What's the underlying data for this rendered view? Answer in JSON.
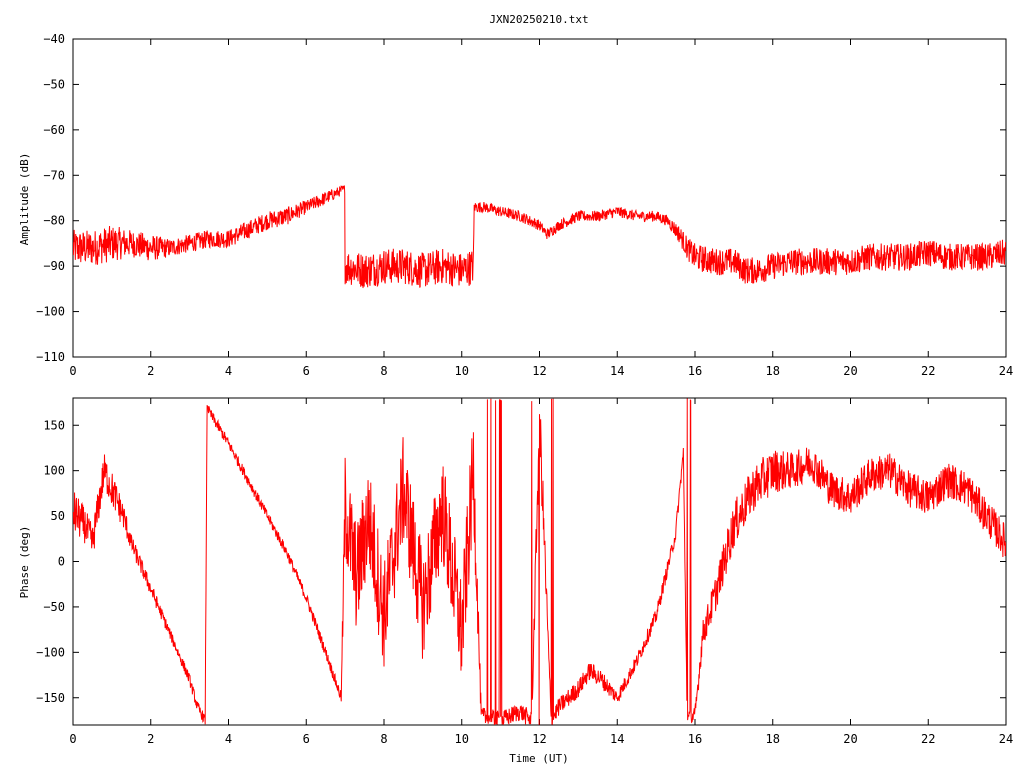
{
  "chart_data": [
    {
      "type": "line",
      "title": "JXN20250210.txt",
      "xlabel": "",
      "ylabel": "Amplitude (dB)",
      "xlim": [
        0,
        24
      ],
      "ylim": [
        -110,
        -40
      ],
      "x_ticks": [
        "0",
        "2",
        "4",
        "6",
        "8",
        "10",
        "12",
        "14",
        "16",
        "18",
        "20",
        "22",
        "24"
      ],
      "y_ticks": [
        "−40",
        "−50",
        "−60",
        "−70",
        "−80",
        "−90",
        "−100",
        "−110"
      ],
      "grid": false,
      "color": "#ff0000",
      "series": [
        {
          "x": [
            0,
            0.5,
            1,
            1.5,
            2,
            2.5,
            3,
            3.5,
            4,
            4.5,
            5,
            5.5,
            6,
            6.5,
            6.99,
            7.0,
            7.5,
            8,
            8.5,
            9,
            9.5,
            10,
            10.3,
            10.32,
            10.6,
            11,
            11.5,
            12,
            12.2,
            12.5,
            13,
            13.5,
            14,
            14.5,
            15,
            15.3,
            15.6,
            15.8,
            16,
            16.5,
            17,
            17.3,
            17.6,
            18,
            18.5,
            19,
            19.5,
            20,
            20.5,
            21,
            21.5,
            22,
            22.5,
            23,
            23.5,
            24
          ],
          "y": [
            -86,
            -86,
            -85,
            -85,
            -86,
            -86,
            -85,
            -84,
            -84,
            -82,
            -80,
            -79,
            -77,
            -75,
            -73,
            -90,
            -91,
            -90,
            -90,
            -91,
            -90,
            -91,
            -90,
            -77,
            -77,
            -78,
            -79,
            -81,
            -83,
            -81,
            -79,
            -79,
            -78,
            -79,
            -79,
            -80,
            -83,
            -86,
            -88,
            -89,
            -89,
            -91,
            -91,
            -90,
            -89,
            -89,
            -89,
            -89,
            -88,
            -88,
            -88,
            -87,
            -88,
            -88,
            -88,
            -87
          ],
          "noise": [
            4,
            4,
            4,
            3,
            3,
            2,
            2,
            2,
            2,
            2,
            2,
            2,
            1.5,
            1.5,
            1,
            4,
            4,
            4,
            4,
            4,
            4,
            4,
            4,
            1.2,
            1.2,
            1.2,
            1.2,
            1.2,
            1.2,
            1.2,
            1.2,
            1.2,
            1.2,
            1.2,
            1.2,
            1.2,
            2,
            2.5,
            3,
            3,
            3,
            3,
            3,
            3,
            3,
            3,
            3,
            3,
            3,
            3,
            3,
            3,
            3,
            3,
            3,
            3
          ]
        }
      ]
    },
    {
      "type": "line",
      "title": "",
      "xlabel": "Time (UT)",
      "ylabel": "Phase (deg)",
      "xlim": [
        0,
        24
      ],
      "ylim": [
        -180,
        180
      ],
      "x_ticks": [
        "0",
        "2",
        "4",
        "6",
        "8",
        "10",
        "12",
        "14",
        "16",
        "18",
        "20",
        "22",
        "24"
      ],
      "y_ticks": [
        "150",
        "100",
        "50",
        "0",
        "−50",
        "−100",
        "−150"
      ],
      "y_tick_values": [
        150,
        100,
        50,
        0,
        -50,
        -100,
        -150
      ],
      "grid": false,
      "color": "#ff0000",
      "series": [
        {
          "x": [
            0,
            0.3,
            0.5,
            0.8,
            1,
            1.3,
            1.5,
            2,
            2.5,
            3,
            3.2,
            3.4,
            3.45,
            3.5,
            4,
            4.5,
            5,
            5.5,
            6,
            6.5,
            6.9,
            7.0,
            7.3,
            7.6,
            8,
            8.5,
            9,
            9.5,
            10,
            10.3,
            10.5,
            11,
            11.5,
            11.8,
            12,
            12.3,
            12.5,
            13,
            13.3,
            13.6,
            14,
            14.5,
            15,
            15.5,
            15.7,
            15.8,
            16,
            16.2,
            16.5,
            17,
            17.5,
            18,
            18.5,
            19,
            19.5,
            20,
            20.5,
            21,
            21.5,
            22,
            22.5,
            23,
            23.5,
            24
          ],
          "y": [
            55,
            40,
            20,
            100,
            80,
            50,
            20,
            -30,
            -80,
            -130,
            -160,
            -175,
            175,
            165,
            130,
            90,
            50,
            10,
            -40,
            -100,
            -150,
            60,
            -20,
            50,
            -60,
            80,
            -50,
            60,
            -80,
            100,
            -170,
            -175,
            -165,
            -175,
            160,
            -175,
            -160,
            -140,
            -120,
            -130,
            -150,
            -110,
            -60,
            30,
            120,
            -175,
            -170,
            -80,
            -40,
            40,
            80,
            100,
            100,
            110,
            80,
            70,
            95,
            100,
            80,
            70,
            90,
            80,
            50,
            20
          ],
          "noise": [
            25,
            20,
            20,
            20,
            20,
            15,
            10,
            8,
            6,
            6,
            6,
            6,
            6,
            6,
            6,
            6,
            6,
            6,
            6,
            6,
            6,
            60,
            60,
            60,
            60,
            60,
            60,
            60,
            60,
            60,
            10,
            10,
            10,
            10,
            40,
            10,
            10,
            10,
            10,
            10,
            8,
            8,
            8,
            8,
            8,
            10,
            10,
            15,
            20,
            25,
            25,
            25,
            20,
            20,
            20,
            20,
            20,
            20,
            20,
            20,
            20,
            20,
            20,
            20
          ]
        }
      ]
    }
  ]
}
